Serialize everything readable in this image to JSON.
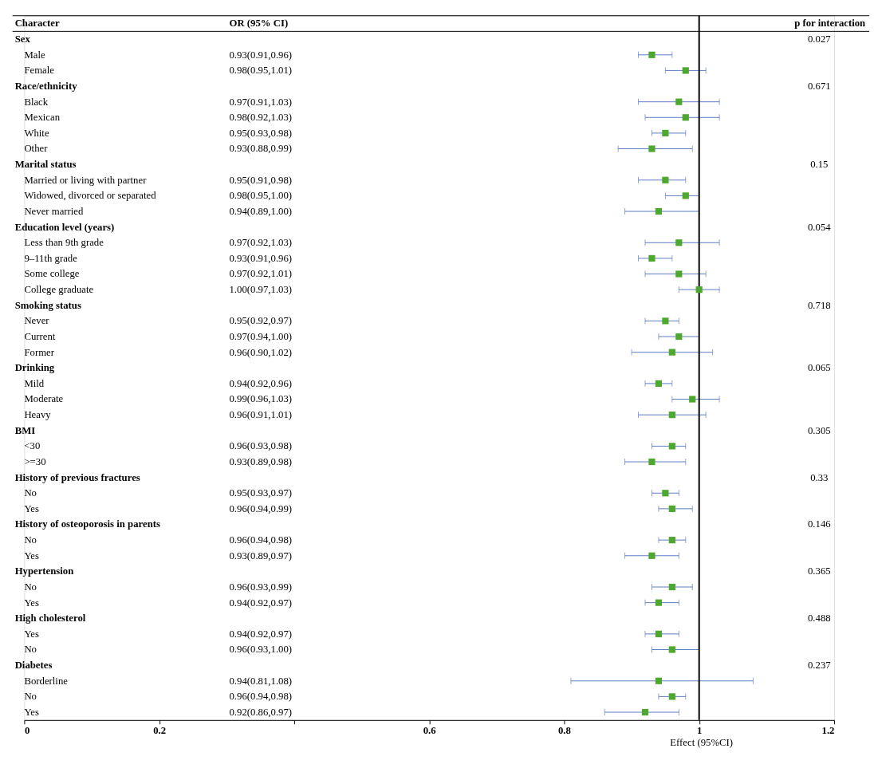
{
  "chart_data": {
    "type": "scatter",
    "orientation": "horizontal",
    "marker": "square",
    "ylabel": "Character",
    "xlabel": "Effect (95%CI)",
    "categories": [
      "Sex",
      "Male",
      "Female",
      "Race/ethnicity",
      "Black",
      "Mexican",
      "White",
      "Other",
      "Marital status",
      "Married or living with partner",
      "Widowed, divorced or separated",
      "Never married",
      "Education level (years)",
      "Less than 9th grade",
      "9–11th grade",
      "Some college",
      "College graduate",
      "Smoking status",
      "Never",
      "Current",
      "Former",
      "Drinking",
      "Mild",
      "Moderate",
      "Heavy",
      "BMI",
      "<30",
      ">=30",
      "History of previous fractures",
      "No",
      "Yes",
      "History of osteoporosis in parents",
      "No",
      "Yes",
      "Hypertension",
      "No",
      "Yes",
      "High cholesterol",
      "Yes",
      "No",
      "Diabetes",
      "Borderline",
      "No",
      "Yes"
    ],
    "series": [
      {
        "color": "#5b7bc4",
        "colors": [
          "#4ea72e",
          "#4ea72e",
          "#4ea72e",
          "#4ea72e",
          "#4ea72e",
          "#4ea72e",
          "#4ea72e",
          "#4ea72e",
          "#4ea72e",
          "#4ea72e",
          "#4ea72e",
          "#4ea72e",
          "#4ea72e",
          "#4ea72e",
          "#4ea72e",
          "#4ea72e",
          "#4ea72e",
          "#4ea72e",
          "#4ea72e",
          "#4ea72e",
          "#4ea72e",
          "#4ea72e",
          "#4ea72e",
          "#4ea72e",
          "#4ea72e",
          "#4ea72e",
          "#4ea72e",
          "#4ea72e",
          "#4ea72e",
          "#4ea72e",
          "#4ea72e",
          "#4ea72e",
          "#4ea72e",
          "#4ea72e",
          "#4ea72e",
          "#4ea72e",
          "#4ea72e",
          "#4ea72e",
          "#4ea72e",
          "#4ea72e",
          "#4ea72e",
          "#4ea72e",
          "#4ea72e",
          "#4ea72e"
        ],
        "values": [
          null,
          0.93,
          0.98,
          null,
          0.97,
          0.98,
          0.95,
          0.93,
          null,
          0.95,
          0.98,
          0.94,
          null,
          0.97,
          0.93,
          0.97,
          1.0,
          null,
          0.95,
          0.97,
          0.96,
          null,
          0.94,
          0.99,
          0.96,
          null,
          0.96,
          0.93,
          null,
          0.95,
          0.96,
          null,
          0.96,
          0.93,
          null,
          0.96,
          0.94,
          null,
          0.94,
          0.96,
          null,
          0.94,
          0.96,
          0.92
        ],
        "errors": [
          null,
          [
            0.91,
            0.96
          ],
          [
            0.95,
            1.01
          ],
          null,
          [
            0.91,
            1.03
          ],
          [
            0.92,
            1.03
          ],
          [
            0.93,
            0.98
          ],
          [
            0.88,
            0.99
          ],
          null,
          [
            0.91,
            0.98
          ],
          [
            0.95,
            1.0
          ],
          [
            0.89,
            1.0
          ],
          null,
          [
            0.92,
            1.03
          ],
          [
            0.91,
            0.96
          ],
          [
            0.92,
            1.01
          ],
          [
            0.97,
            1.03
          ],
          null,
          [
            0.92,
            0.97
          ],
          [
            0.94,
            1.0
          ],
          [
            0.9,
            1.02
          ],
          null,
          [
            0.92,
            0.96
          ],
          [
            0.96,
            1.03
          ],
          [
            0.91,
            1.01
          ],
          null,
          [
            0.93,
            0.98
          ],
          [
            0.89,
            0.98
          ],
          null,
          [
            0.93,
            0.97
          ],
          [
            0.94,
            0.99
          ],
          null,
          [
            0.94,
            0.98
          ],
          [
            0.89,
            0.97
          ],
          null,
          [
            0.93,
            0.99
          ],
          [
            0.92,
            0.97
          ],
          null,
          [
            0.92,
            0.97
          ],
          [
            0.93,
            1.0
          ],
          null,
          [
            0.81,
            1.08
          ],
          [
            0.94,
            0.98
          ],
          [
            0.86,
            0.97
          ]
        ]
      }
    ],
    "value_labels": [
      null,
      "0.93(0.91,0.96)",
      "0.98(0.95,1.01)",
      null,
      "0.97(0.91,1.03)",
      "0.98(0.92,1.03)",
      "0.95(0.93,0.98)",
      "0.93(0.88,0.99)",
      null,
      "0.95(0.91,0.98)",
      "0.98(0.95,1.00)",
      "0.94(0.89,1.00)",
      null,
      "0.97(0.92,1.03)",
      "0.93(0.91,0.96)",
      "0.97(0.92,1.01)",
      "1.00(0.97,1.03)",
      null,
      "0.95(0.92,0.97)",
      "0.97(0.94,1.00)",
      "0.96(0.90,1.02)",
      null,
      "0.94(0.92,0.96)",
      "0.99(0.96,1.03)",
      "0.96(0.91,1.01)",
      null,
      "0.96(0.93,0.98)",
      "0.93(0.89,0.98)",
      null,
      "0.95(0.93,0.97)",
      "0.96(0.94,0.99)",
      null,
      "0.96(0.94,0.98)",
      "0.93(0.89,0.97)",
      null,
      "0.96(0.93,0.99)",
      "0.94(0.92,0.97)",
      null,
      "0.94(0.92,0.97)",
      "0.96(0.93,1.00)",
      null,
      "0.94(0.81,1.08)",
      "0.96(0.94,0.98)",
      "0.92(0.86,0.97)"
    ],
    "xlim": [
      0,
      1.2
    ],
    "xticks": [
      0,
      0.2,
      {
        "value": 0.4,
        "label": null
      },
      0.6,
      0.8,
      1,
      1.2
    ],
    "ref_lines": [
      {
        "axis": "x",
        "value": 1,
        "color": "#000000"
      }
    ],
    "annotations": [
      "OR (95% CI)",
      "p for interaction",
      "0.027",
      "0.671",
      "0.15",
      "0.054",
      "0.718",
      "0.065",
      "0.305",
      "0.33",
      "0.146",
      "0.365",
      "0.488",
      "0.237"
    ]
  }
}
